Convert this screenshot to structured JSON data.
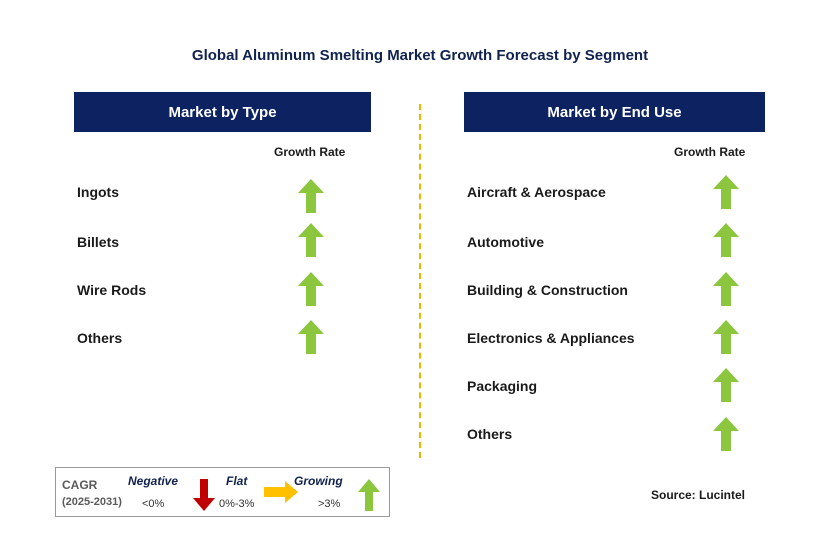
{
  "title": "Global Aluminum Smelting Market Growth Forecast by Segment",
  "left_panel": {
    "header": "Market by Type",
    "growth_header": "Growth Rate",
    "items": [
      {
        "label": "Ingots",
        "trend": "growing"
      },
      {
        "label": "Billets",
        "trend": "growing"
      },
      {
        "label": "Wire Rods",
        "trend": "growing"
      },
      {
        "label": "Others",
        "trend": "growing"
      }
    ]
  },
  "right_panel": {
    "header": "Market by End Use",
    "growth_header": "Growth Rate",
    "items": [
      {
        "label": "Aircraft & Aerospace",
        "trend": "growing"
      },
      {
        "label": "Automotive",
        "trend": "growing"
      },
      {
        "label": "Building & Construction",
        "trend": "growing"
      },
      {
        "label": "Electronics & Appliances",
        "trend": "growing"
      },
      {
        "label": "Packaging",
        "trend": "growing"
      },
      {
        "label": "Others",
        "trend": "growing"
      }
    ]
  },
  "legend": {
    "cagr_label": "CAGR",
    "period": "(2025-2031)",
    "negative": {
      "label": "Negative",
      "range": "<0%"
    },
    "flat": {
      "label": "Flat",
      "range": "0%-3%"
    },
    "growing": {
      "label": "Growing",
      "range": ">3%"
    }
  },
  "source": "Source: Lucintel",
  "colors": {
    "header_bg": "#0d2260",
    "up_arrow": "#8cc63f",
    "down_arrow": "#c00000",
    "flat_arrow": "#ffc000",
    "divider": "#f0b400"
  },
  "icons": {
    "growing": "up-arrow-icon",
    "negative": "down-arrow-icon",
    "flat": "right-arrow-icon"
  }
}
